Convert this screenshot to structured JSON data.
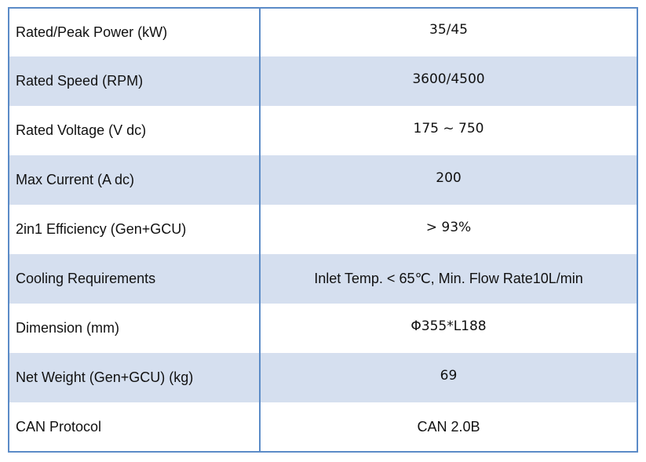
{
  "spec_table": {
    "rows": [
      {
        "label": "Rated/Peak Power  (kW)",
        "value": "35/45"
      },
      {
        "label": "Rated Speed  (RPM)",
        "value": "3600/4500"
      },
      {
        "label": "Rated Voltage  (V dc)",
        "value": "175 ~ 750"
      },
      {
        "label": "Max Current  (A dc)",
        "value": "200"
      },
      {
        "label": "2in1 Efficiency (Gen+GCU)",
        "value": "> 93%"
      },
      {
        "label": "Cooling Requirements",
        "value": "Inlet Temp. < 65℃,  Min. Flow Rate10L/min"
      },
      {
        "label": "Dimension   (mm)",
        "value": "Φ355*L188"
      },
      {
        "label": "Net Weight (Gen+GCU) (kg)",
        "value": "69"
      },
      {
        "label": "CAN Protocol",
        "value": "CAN 2.0B"
      }
    ]
  },
  "colors": {
    "border": "#5b8bc7",
    "shaded_row": "#d5dfef",
    "text": "#111111"
  }
}
